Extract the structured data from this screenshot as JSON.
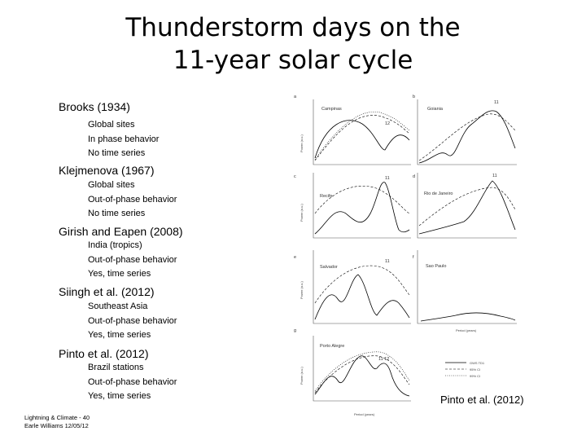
{
  "slide": {
    "title_line1": "Thunderstorm days on the",
    "title_line2": "11-year solar cycle"
  },
  "references": [
    {
      "heading": "Brooks (1934)",
      "details": [
        "Global sites",
        "In phase behavior",
        "No time series"
      ]
    },
    {
      "heading": "Klejmenova (1967)",
      "details": [
        "Global sites",
        "Out-of-phase behavior",
        "No time series"
      ]
    },
    {
      "heading": "Girish and Eapen (2008)",
      "details": [
        "India (tropics)",
        "Out-of-phase behavior",
        "Yes, time series"
      ]
    },
    {
      "heading": "Siingh et al. (2012)",
      "details": [
        "Southeast Asia",
        "Out-of-phase behavior",
        "Yes, time series"
      ]
    },
    {
      "heading": "Pinto et al. (2012)",
      "details": [
        "Brazil stations",
        "Out-of-phase behavior",
        "Yes, time series"
      ]
    }
  ],
  "footer": {
    "line1": "Lightning & Climate - 40",
    "line2": "Earle Williams 12/05/12"
  },
  "figure": {
    "caption": "Pinto et al. (2012)",
    "panels": [
      {
        "letter": "a",
        "station": "Campinas",
        "peak_label": "12"
      },
      {
        "letter": "b",
        "station": "Goiania",
        "peak_label": "11"
      },
      {
        "letter": "c",
        "station": "Recife",
        "peak_label": "11"
      },
      {
        "letter": "d",
        "station": "Rio de Janeiro",
        "peak_label": "11"
      },
      {
        "letter": "e",
        "station": "Salvador",
        "peak_label": "11"
      },
      {
        "letter": "f",
        "station": "Sao Paulo",
        "peak_label": ""
      },
      {
        "letter": "g",
        "station": "Porto Alegre",
        "peak_label": "11  12"
      }
    ],
    "ylabel": "Power (a.u.)",
    "xlabel": "Period (years)",
    "legend": [
      "GWS TD1",
      "95% CI",
      "99% CI"
    ]
  }
}
